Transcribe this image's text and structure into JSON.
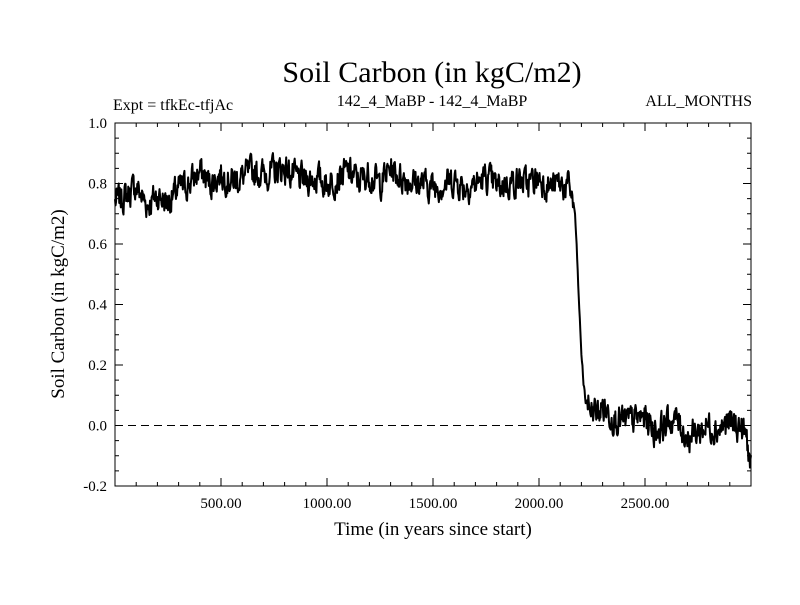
{
  "chart_data": {
    "type": "line",
    "title": "Soil Carbon (in kgC/m2)",
    "subtitle_left": "Expt = tfkEc-tfjAc",
    "subtitle_center": "142_4_MaBP - 142_4_MaBP",
    "subtitle_right": "ALL_MONTHS",
    "xlabel": "Time (in years since start)",
    "ylabel": "Soil Carbon (in kgC/m2)",
    "xlim": [
      0,
      3000
    ],
    "ylim": [
      -0.2,
      1.0
    ],
    "x_ticks": [
      500,
      1000,
      1500,
      2000,
      2500
    ],
    "x_tick_labels": [
      "500.00",
      "1000.00",
      "1500.00",
      "2000.00",
      "2500.00"
    ],
    "y_ticks": [
      -0.2,
      0.0,
      0.2,
      0.4,
      0.6,
      0.8,
      1.0
    ],
    "y_tick_labels": [
      "-0.2",
      "0.0",
      "0.2",
      "0.4",
      "0.6",
      "0.8",
      "1.0"
    ],
    "reference_line": {
      "y": 0.0,
      "style": "dashed"
    },
    "grid": false,
    "series": [
      {
        "x": [
          0,
          50,
          100,
          150,
          200,
          250,
          300,
          350,
          400,
          450,
          500,
          550,
          600,
          650,
          700,
          750,
          800,
          850,
          900,
          950,
          1000,
          1050,
          1100,
          1150,
          1200,
          1250,
          1300,
          1350,
          1400,
          1450,
          1500,
          1550,
          1600,
          1650,
          1700,
          1750,
          1800,
          1850,
          1900,
          1950,
          2000,
          2050,
          2100,
          2150,
          2170,
          2180,
          2190,
          2200,
          2210,
          2220,
          2240,
          2260,
          2280,
          2300,
          2350,
          2400,
          2450,
          2500,
          2550,
          2600,
          2650,
          2700,
          2750,
          2800,
          2850,
          2900,
          2950,
          2980,
          3000
        ],
        "y": [
          0.74,
          0.76,
          0.79,
          0.73,
          0.76,
          0.74,
          0.78,
          0.8,
          0.84,
          0.8,
          0.83,
          0.81,
          0.82,
          0.84,
          0.83,
          0.84,
          0.85,
          0.82,
          0.81,
          0.82,
          0.8,
          0.82,
          0.84,
          0.81,
          0.83,
          0.8,
          0.85,
          0.82,
          0.81,
          0.8,
          0.79,
          0.8,
          0.81,
          0.79,
          0.8,
          0.82,
          0.79,
          0.8,
          0.81,
          0.8,
          0.82,
          0.79,
          0.8,
          0.78,
          0.7,
          0.55,
          0.38,
          0.24,
          0.14,
          0.08,
          0.06,
          0.05,
          0.04,
          0.06,
          0.03,
          0.01,
          0.02,
          0.03,
          -0.02,
          0.01,
          0.02,
          -0.04,
          -0.02,
          0.0,
          -0.01,
          0.01,
          -0.01,
          -0.04,
          -0.15
        ]
      }
    ]
  }
}
